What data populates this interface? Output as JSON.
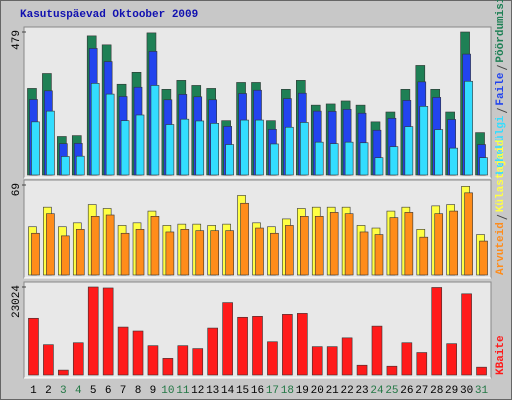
{
  "chart_data": [
    {
      "type": "bar",
      "title": "Kasutuspäevad Oktoober 2009",
      "ylim": [
        0,
        479
      ],
      "yticks": [
        479
      ],
      "series": [
        {
          "name": "Pöördumisi",
          "color": "#1e8055",
          "values": [
            290,
            340,
            129,
            132,
            466,
            436,
            304,
            344,
            476,
            287,
            317,
            300,
            290,
            182,
            310,
            310,
            182,
            287,
            317,
            234,
            238,
            248,
            234,
            178,
            211,
            287,
            367,
            287,
            211,
            479,
            142
          ]
        },
        {
          "name": "Faile",
          "color": "#2244ee",
          "values": [
            253,
            282,
            105,
            106,
            424,
            380,
            263,
            294,
            414,
            252,
            270,
            262,
            252,
            163,
            273,
            284,
            153,
            256,
            274,
            214,
            213,
            220,
            207,
            150,
            190,
            250,
            312,
            260,
            186,
            405,
            102
          ]
        },
        {
          "name": "Lehekülgi",
          "color": "#33ddff",
          "values": [
            178,
            214,
            62,
            63,
            307,
            271,
            182,
            201,
            300,
            169,
            187,
            181,
            173,
            102,
            184,
            184,
            104,
            160,
            176,
            110,
            105,
            110,
            108,
            58,
            95,
            162,
            230,
            152,
            90,
            314,
            58
          ]
        }
      ]
    },
    {
      "type": "bar",
      "ylim": [
        0,
        69
      ],
      "yticks": [
        69
      ],
      "series": [
        {
          "name": "Külastajaid",
          "color": "#ffff44",
          "values": [
            37,
            52,
            37,
            40,
            54,
            51,
            38,
            40,
            49,
            38,
            39,
            39,
            38,
            39,
            61,
            40,
            37,
            43,
            51,
            52,
            52,
            52,
            38,
            36,
            49,
            52,
            35,
            53,
            54,
            68,
            31
          ]
        },
        {
          "name": "Arvuteid",
          "color": "#ff8c1a",
          "values": [
            32,
            47,
            30,
            35,
            45,
            46,
            32,
            35,
            45,
            33,
            35,
            34,
            34,
            34,
            55,
            36,
            32,
            38,
            45,
            45,
            48,
            47,
            33,
            31,
            44,
            48,
            29,
            47,
            49,
            63,
            26
          ]
        }
      ]
    },
    {
      "type": "bar",
      "ylim": [
        0,
        23024
      ],
      "yticks": [
        23024
      ],
      "categories": [
        "1",
        "2",
        "3",
        "4",
        "5",
        "6",
        "7",
        "8",
        "9",
        "10",
        "11",
        "12",
        "13",
        "14",
        "15",
        "16",
        "17",
        "18",
        "19",
        "20",
        "21",
        "22",
        "23",
        "24",
        "25",
        "26",
        "27",
        "28",
        "29",
        "30",
        "31"
      ],
      "category_colors": [
        "#000",
        "#000",
        "#227744",
        "#227744",
        "#000",
        "#000",
        "#000",
        "#000",
        "#000",
        "#227744",
        "#227744",
        "#000",
        "#000",
        "#000",
        "#000",
        "#000",
        "#227744",
        "#227744",
        "#000",
        "#000",
        "#000",
        "#000",
        "#000",
        "#227744",
        "#227744",
        "#000",
        "#000",
        "#000",
        "#000",
        "#000",
        "#227744"
      ],
      "series": [
        {
          "name": "KBaite",
          "color": "#ff1a1a",
          "values": [
            14840,
            7930,
            1280,
            8440,
            23024,
            22770,
            12540,
            11510,
            7670,
            4350,
            7670,
            6910,
            12280,
            18940,
            15100,
            15350,
            8700,
            15870,
            16120,
            7420,
            7420,
            9720,
            2560,
            12790,
            2300,
            8440,
            5880,
            22900,
            8190,
            21240,
            2050
          ]
        }
      ]
    }
  ]
}
